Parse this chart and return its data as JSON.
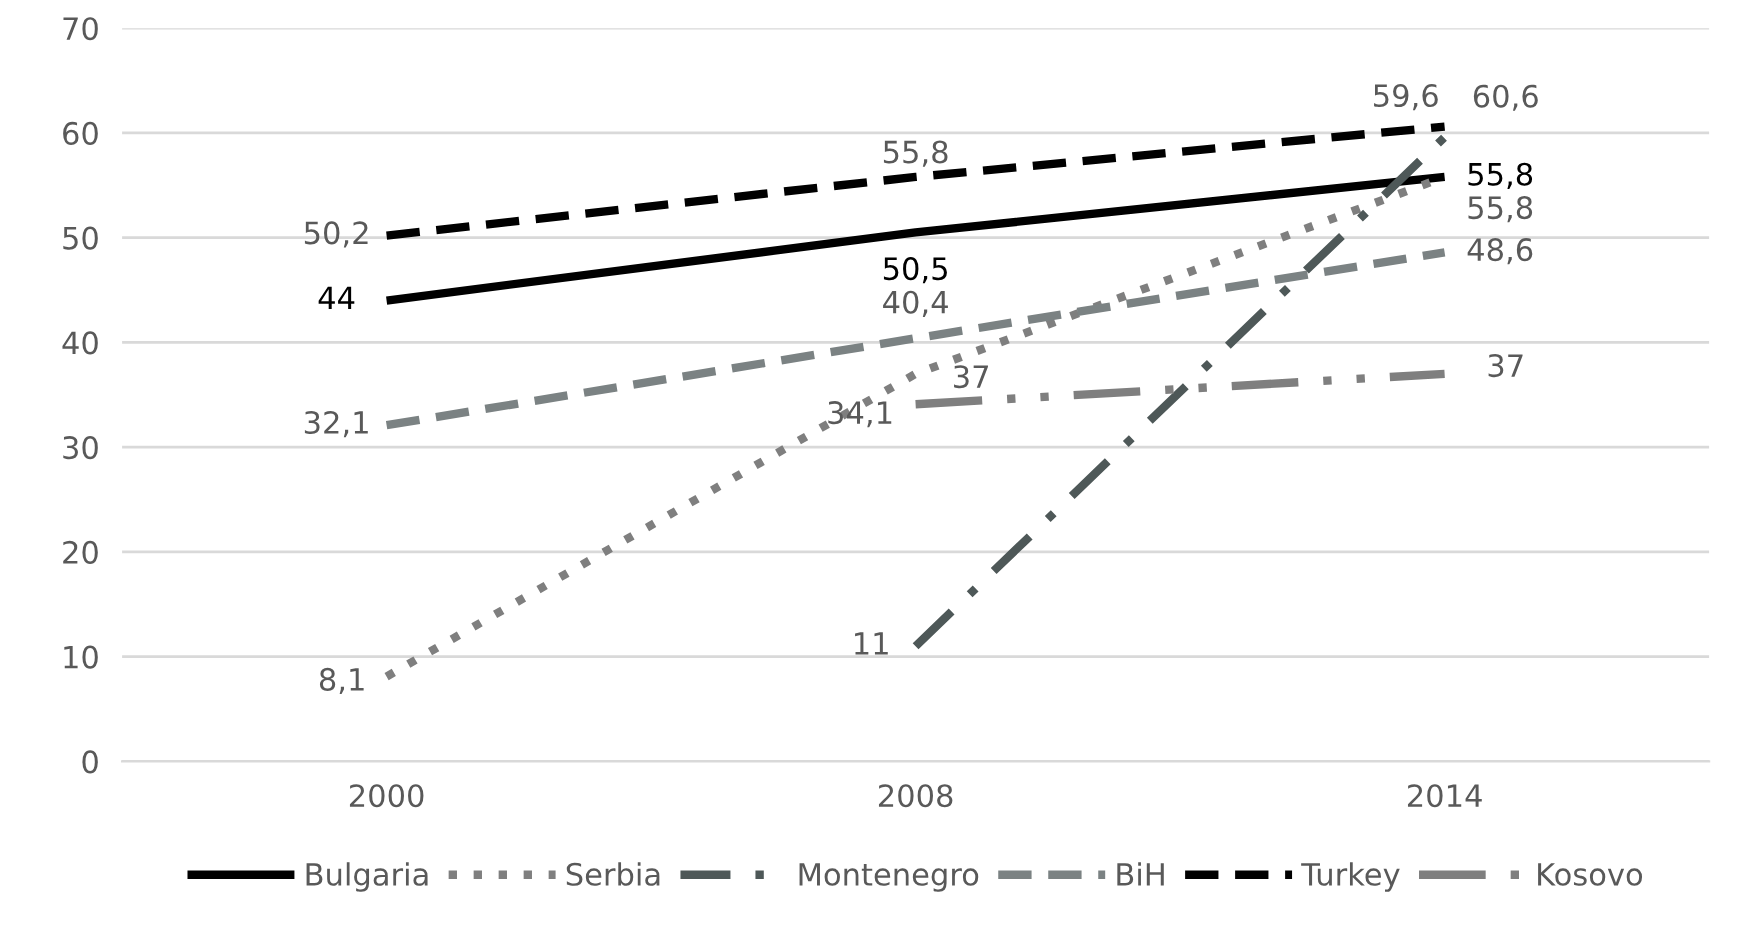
{
  "chart_data": {
    "type": "line",
    "categories": [
      "2000",
      "2008",
      "2014"
    ],
    "ylim": [
      0,
      70
    ],
    "yticks": [
      0,
      10,
      20,
      30,
      40,
      50,
      60,
      70
    ],
    "grid": "y",
    "legend": "bottom",
    "marker": "none",
    "series": [
      {
        "name": "Bulgaria",
        "color": "#000000",
        "line_style": "solid",
        "values": [
          44,
          50.5,
          55.8
        ],
        "value_labels": [
          "44",
          "50,5",
          "55,8"
        ]
      },
      {
        "name": "Serbia",
        "color": "#7f7f7f",
        "line_style": "dotted",
        "values": [
          8.1,
          37,
          55.8
        ],
        "value_labels": [
          "8,1",
          "37",
          "55,8"
        ]
      },
      {
        "name": "Montenegro",
        "color": "#4e5858",
        "line_style": "dashdot",
        "values": [
          null,
          11,
          59.6
        ],
        "value_labels": [
          null,
          "11",
          "59,6"
        ]
      },
      {
        "name": "BiH",
        "color": "#7b8283",
        "line_style": "dashed",
        "values": [
          32.1,
          40.4,
          48.6
        ],
        "value_labels": [
          "32,1",
          "40,4",
          "48,6"
        ]
      },
      {
        "name": "Turkey",
        "color": "#000000",
        "line_style": "dashed",
        "values": [
          50.2,
          55.8,
          60.6
        ],
        "value_labels": [
          "50,2",
          "55,8",
          "60,6"
        ]
      },
      {
        "name": "Kosovo",
        "color": "#7f7f7f",
        "line_style": "longdashdotdot",
        "values": [
          null,
          34.1,
          37
        ],
        "value_labels": [
          null,
          "34,1",
          "37"
        ]
      }
    ]
  }
}
